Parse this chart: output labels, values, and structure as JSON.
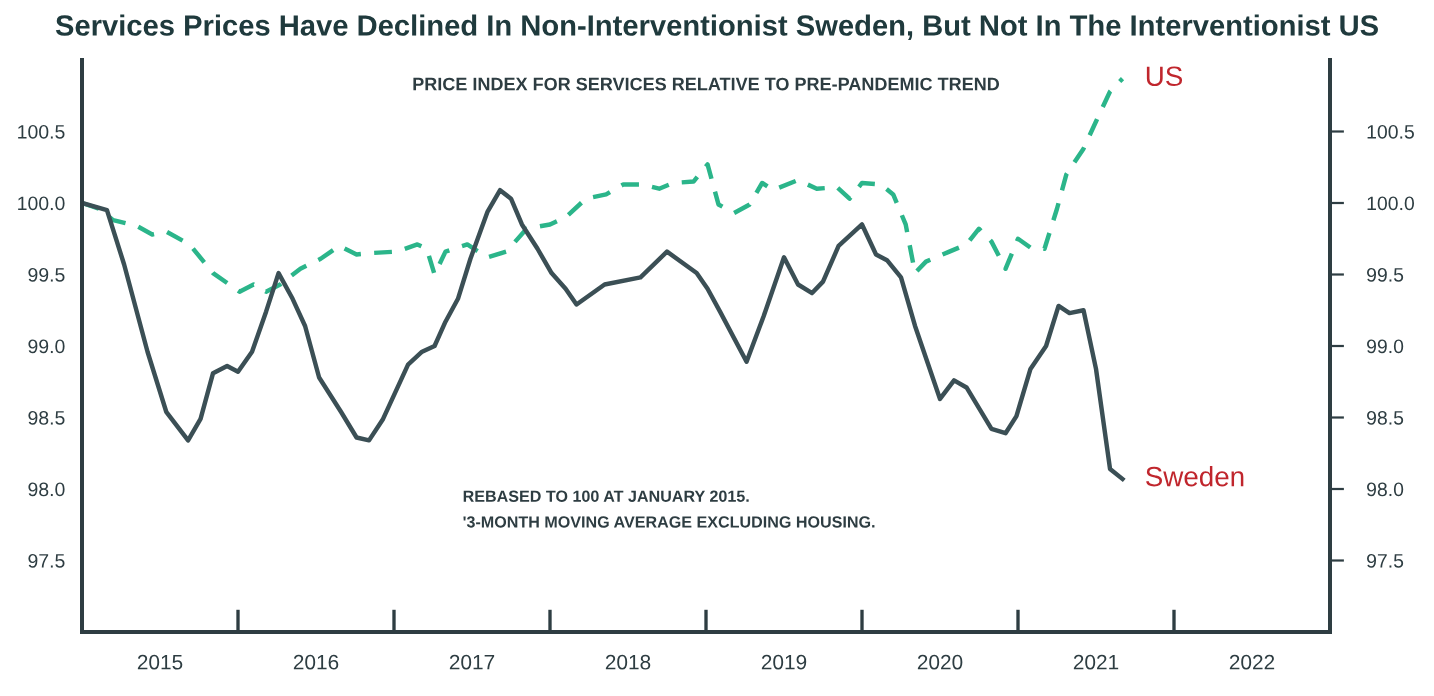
{
  "chart_data": {
    "type": "line",
    "title": "Services Prices Have Declined In Non-Interventionist Sweden, But Not In The Interventionist US",
    "subtitle": "PRICE INDEX FOR SERVICES RELATIVE TO PRE-PANDEMIC TREND",
    "annotations": [
      "REBASED TO 100 AT JANUARY 2015.",
      "'3-MONTH MOVING AVERAGE EXCLUDING HOUSING."
    ],
    "series": [
      {
        "name": "US",
        "color": "#2bb58a",
        "line_style": "dashed",
        "x": [
          2015.0,
          2015.11,
          2015.2,
          2015.35,
          2015.45,
          2015.54,
          2015.69,
          2015.84,
          2016.01,
          2016.1,
          2016.18,
          2016.27,
          2016.4,
          2016.53,
          2016.65,
          2016.76,
          2016.85,
          2017.02,
          2017.15,
          2017.21,
          2017.26,
          2017.33,
          2017.47,
          2017.6,
          2017.72,
          2017.85,
          2018.0,
          2018.1,
          2018.23,
          2018.36,
          2018.47,
          2018.59,
          2018.7,
          2018.79,
          2018.92,
          2019.01,
          2019.08,
          2019.18,
          2019.28,
          2019.36,
          2019.43,
          2019.59,
          2019.71,
          2019.84,
          2019.92,
          2020.0,
          2020.12,
          2020.2,
          2020.28,
          2020.34,
          2020.41,
          2020.56,
          2020.67,
          2020.75,
          2020.83,
          2020.92,
          2021.0,
          2021.09,
          2021.17,
          2021.25,
          2021.31,
          2021.42,
          2021.5,
          2021.59,
          2021.67
        ],
        "values": [
          100.0,
          99.96,
          99.88,
          99.84,
          99.78,
          99.8,
          99.71,
          99.51,
          99.38,
          99.43,
          99.38,
          99.43,
          99.54,
          99.61,
          99.7,
          99.64,
          99.65,
          99.66,
          99.71,
          99.68,
          99.5,
          99.66,
          99.71,
          99.62,
          99.66,
          99.82,
          99.85,
          99.9,
          100.03,
          100.06,
          100.13,
          100.13,
          100.1,
          100.14,
          100.15,
          100.27,
          99.99,
          99.93,
          99.99,
          100.14,
          100.09,
          100.16,
          100.1,
          100.11,
          100.03,
          100.14,
          100.13,
          100.06,
          99.85,
          99.51,
          99.59,
          99.66,
          99.71,
          99.82,
          99.73,
          99.54,
          99.75,
          99.68,
          99.68,
          99.96,
          100.2,
          100.38,
          100.57,
          100.78,
          100.87
        ]
      },
      {
        "name": "Sweden",
        "color": "#3b4f55",
        "line_style": "solid",
        "x": [
          2015.0,
          2015.16,
          2015.27,
          2015.42,
          2015.54,
          2015.68,
          2015.76,
          2015.84,
          2015.93,
          2016.0,
          2016.09,
          2016.18,
          2016.26,
          2016.35,
          2016.43,
          2016.52,
          2016.66,
          2016.76,
          2016.84,
          2016.93,
          2017.09,
          2017.18,
          2017.26,
          2017.33,
          2017.41,
          2017.49,
          2017.6,
          2017.68,
          2017.75,
          2017.82,
          2017.92,
          2018.01,
          2018.1,
          2018.17,
          2018.35,
          2018.58,
          2018.75,
          2018.94,
          2019.01,
          2019.09,
          2019.26,
          2019.37,
          2019.5,
          2019.59,
          2019.68,
          2019.75,
          2019.85,
          2020.0,
          2020.09,
          2020.16,
          2020.25,
          2020.34,
          2020.5,
          2020.59,
          2020.67,
          2020.83,
          2020.92,
          2020.99,
          2021.08,
          2021.18,
          2021.26,
          2021.33,
          2021.42,
          2021.5,
          2021.59,
          2021.67
        ],
        "values": [
          100.0,
          99.95,
          99.57,
          98.96,
          98.54,
          98.34,
          98.49,
          98.81,
          98.86,
          98.82,
          98.96,
          99.24,
          99.51,
          99.33,
          99.14,
          98.78,
          98.54,
          98.36,
          98.34,
          98.49,
          98.87,
          98.96,
          99.0,
          99.17,
          99.33,
          99.61,
          99.94,
          100.09,
          100.03,
          99.85,
          99.68,
          99.51,
          99.4,
          99.29,
          99.43,
          99.48,
          99.66,
          99.51,
          99.4,
          99.24,
          98.89,
          99.21,
          99.62,
          99.43,
          99.37,
          99.45,
          99.7,
          99.85,
          99.64,
          99.6,
          99.48,
          99.14,
          98.63,
          98.76,
          98.71,
          98.42,
          98.39,
          98.51,
          98.84,
          99.0,
          99.28,
          99.23,
          99.25,
          98.84,
          98.14,
          98.07
        ]
      }
    ],
    "xlim": [
      2015,
      2023
    ],
    "xticks": [
      {
        "value": 2015.5,
        "label": "2015"
      },
      {
        "value": 2016,
        "label": null
      },
      {
        "value": 2016.5,
        "label": "2016"
      },
      {
        "value": 2017,
        "label": null
      },
      {
        "value": 2017.5,
        "label": "2017"
      },
      {
        "value": 2018,
        "label": null
      },
      {
        "value": 2018.5,
        "label": "2018"
      },
      {
        "value": 2019,
        "label": null
      },
      {
        "value": 2019.5,
        "label": "2019"
      },
      {
        "value": 2020,
        "label": null
      },
      {
        "value": 2020.5,
        "label": "2020"
      },
      {
        "value": 2021,
        "label": null
      },
      {
        "value": 2021.5,
        "label": "2021"
      },
      {
        "value": 2022,
        "label": null
      },
      {
        "value": 2022.5,
        "label": "2022"
      }
    ],
    "ylim": [
      97.0,
      101.0
    ],
    "yticks": [
      {
        "value": 97.5,
        "label": "97.5"
      },
      {
        "value": 98.0,
        "label": "98.0"
      },
      {
        "value": 98.5,
        "label": "98.5"
      },
      {
        "value": 99.0,
        "label": "99.0"
      },
      {
        "value": 99.5,
        "label": "99.5"
      },
      {
        "value": 100.0,
        "label": "100.0"
      },
      {
        "value": 100.5,
        "label": "100.5"
      }
    ],
    "y2lim": [
      97.0,
      101.0
    ],
    "y2ticks": [
      {
        "value": 97.5,
        "label": "97.5"
      },
      {
        "value": 98.0,
        "label": "98.0"
      },
      {
        "value": 98.5,
        "label": "98.5"
      },
      {
        "value": 99.0,
        "label": "99.0"
      },
      {
        "value": 99.5,
        "label": "99.5"
      },
      {
        "value": 100.0,
        "label": "100.0"
      },
      {
        "value": 100.5,
        "label": "100.5"
      }
    ],
    "grid": false,
    "legend": false,
    "marker": "none"
  }
}
